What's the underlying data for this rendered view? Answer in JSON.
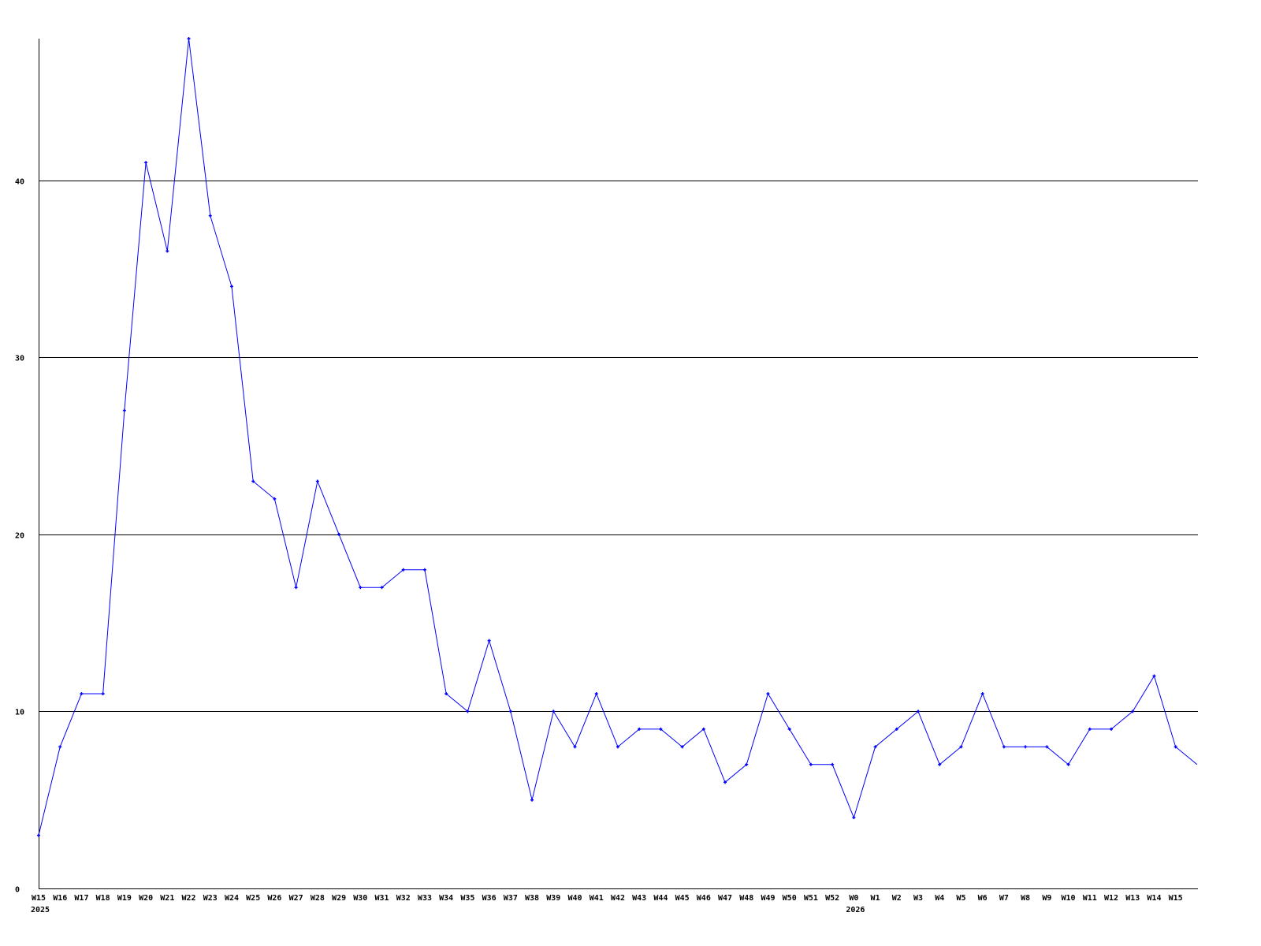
{
  "chart_data": {
    "type": "line",
    "title": "",
    "xlabel": "",
    "ylabel": "",
    "ylim": [
      0,
      48
    ],
    "yticks": [
      0,
      10,
      20,
      30,
      40
    ],
    "grid": "horizontal",
    "line_color": "#0000ff",
    "categories": [
      "W15",
      "W16",
      "W17",
      "W18",
      "W19",
      "W20",
      "W21",
      "W22",
      "W23",
      "W24",
      "W25",
      "W26",
      "W27",
      "W28",
      "W29",
      "W30",
      "W31",
      "W32",
      "W33",
      "W34",
      "W35",
      "W36",
      "W37",
      "W38",
      "W39",
      "W40",
      "W41",
      "W42",
      "W43",
      "W44",
      "W45",
      "W46",
      "W47",
      "W48",
      "W49",
      "W50",
      "W51",
      "W52",
      "W0",
      "W1",
      "W2",
      "W3",
      "W4",
      "W5",
      "W6",
      "W7",
      "W8",
      "W9",
      "W10",
      "W11",
      "W12",
      "W13",
      "W14",
      "W15",
      ""
    ],
    "year_labels": [
      {
        "index": 0,
        "label": "2025"
      },
      {
        "index": 38,
        "label": "2026"
      }
    ],
    "values": [
      3,
      8,
      11,
      11,
      27,
      41,
      36,
      48,
      38,
      34,
      23,
      22,
      17,
      23,
      20,
      17,
      17,
      18,
      18,
      11,
      10,
      14,
      10,
      5,
      10,
      8,
      11,
      8,
      9,
      9,
      8,
      9,
      6,
      7,
      11,
      9,
      7,
      7,
      4,
      8,
      9,
      10,
      7,
      8,
      11,
      8,
      8,
      8,
      7,
      9,
      9,
      10,
      12,
      8,
      7
    ]
  }
}
